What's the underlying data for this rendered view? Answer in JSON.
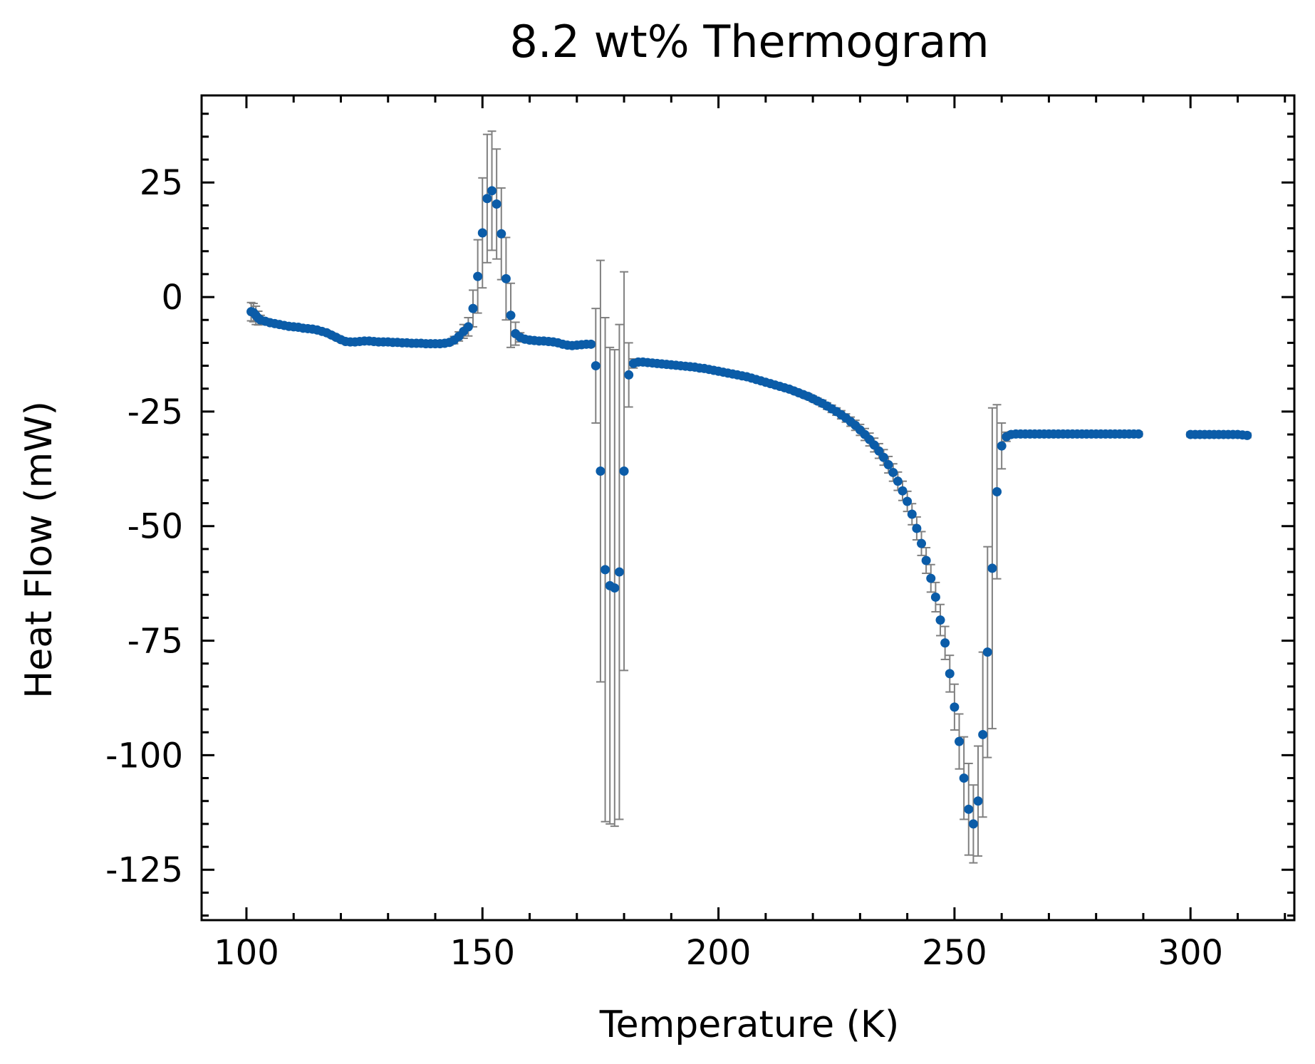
{
  "chart_data": {
    "type": "scatter",
    "title": "8.2 wt% Thermogram",
    "xlabel": "Temperature (K)",
    "ylabel": "Heat Flow (mW)",
    "xlim": [
      90.5,
      322
    ],
    "ylim": [
      -136,
      44
    ],
    "xticks": [
      100,
      150,
      200,
      250,
      300
    ],
    "xtick_labels": [
      "100",
      "150",
      "200",
      "250",
      "300"
    ],
    "yticks": [
      -125,
      -100,
      -75,
      -50,
      -25,
      0,
      25
    ],
    "ytick_labels": [
      "-125",
      "-100",
      "-75",
      "-50",
      "-25",
      "0",
      "25"
    ],
    "x_minor_step": 10,
    "y_minor_step": 5,
    "grid": false,
    "marker_color": "#0b5ca8",
    "errorbar_color": "#808080",
    "axis_color": "#000000",
    "series": [
      {
        "points": [
          [
            101,
            -3.2,
            2
          ],
          [
            101.5,
            -3.4,
            2
          ],
          [
            102,
            -4,
            2
          ],
          [
            102.5,
            -4.6,
            1.5
          ],
          [
            103,
            -5,
            1
          ],
          [
            104,
            -5.3,
            0.6
          ],
          [
            105,
            -5.6,
            0.5
          ],
          [
            106,
            -5.8,
            0.5
          ],
          [
            107,
            -6,
            0.5
          ],
          [
            108,
            -6.2,
            0.5
          ],
          [
            109,
            -6.4,
            0.5
          ],
          [
            110,
            -6.5,
            0.5
          ],
          [
            111,
            -6.6,
            0.5
          ],
          [
            112,
            -6.8,
            0.5
          ],
          [
            113,
            -6.9,
            0.5
          ],
          [
            114,
            -7,
            0.5
          ],
          [
            115,
            -7.2,
            0.5
          ],
          [
            116,
            -7.5,
            0.5
          ],
          [
            117,
            -7.8,
            0.5
          ],
          [
            118,
            -8.3,
            0.5
          ],
          [
            119,
            -8.8,
            0.5
          ],
          [
            120,
            -9.3,
            0.5
          ],
          [
            121,
            -9.7,
            0.5
          ],
          [
            122,
            -9.8,
            0.5
          ],
          [
            123,
            -9.8,
            0.5
          ],
          [
            124,
            -9.7,
            0.5
          ],
          [
            125,
            -9.6,
            0.5
          ],
          [
            126,
            -9.6,
            0.5
          ],
          [
            127,
            -9.7,
            0.5
          ],
          [
            128,
            -9.8,
            0.5
          ],
          [
            129,
            -9.8,
            0.5
          ],
          [
            130,
            -9.8,
            0.5
          ],
          [
            131,
            -9.9,
            0.5
          ],
          [
            132,
            -9.9,
            0.5
          ],
          [
            133,
            -10,
            0.5
          ],
          [
            134,
            -10,
            0.5
          ],
          [
            135,
            -10.1,
            0.5
          ],
          [
            136,
            -10.1,
            0.5
          ],
          [
            137,
            -10.1,
            0.5
          ],
          [
            138,
            -10.2,
            0.5
          ],
          [
            139,
            -10.2,
            0.5
          ],
          [
            140,
            -10.2,
            0.5
          ],
          [
            141,
            -10.2,
            0.5
          ],
          [
            142,
            -10.1,
            0.5
          ],
          [
            143,
            -9.9,
            0.6
          ],
          [
            144,
            -9.4,
            0.8
          ],
          [
            145,
            -8.6,
            1
          ],
          [
            146,
            -7.5,
            1.5
          ],
          [
            147,
            -6.5,
            2
          ],
          [
            148,
            -2.5,
            4
          ],
          [
            149,
            4.5,
            8
          ],
          [
            150,
            14,
            12
          ],
          [
            151,
            21.5,
            14
          ],
          [
            152,
            23.2,
            13
          ],
          [
            153,
            20.3,
            12
          ],
          [
            154,
            13.8,
            10
          ],
          [
            155,
            4,
            9
          ],
          [
            156,
            -4,
            7
          ],
          [
            157,
            -8,
            2.5
          ],
          [
            158,
            -8.8,
            1
          ],
          [
            159,
            -9.2,
            0.6
          ],
          [
            160,
            -9.4,
            0.5
          ],
          [
            161,
            -9.5,
            0.5
          ],
          [
            162,
            -9.6,
            0.5
          ],
          [
            163,
            -9.6,
            0.5
          ],
          [
            164,
            -9.7,
            0.5
          ],
          [
            165,
            -9.8,
            0.5
          ],
          [
            166,
            -10,
            0.5
          ],
          [
            167,
            -10.3,
            0.5
          ],
          [
            168,
            -10.5,
            0.5
          ],
          [
            169,
            -10.6,
            0.5
          ],
          [
            170,
            -10.5,
            0.5
          ],
          [
            171,
            -10.4,
            0.5
          ],
          [
            172,
            -10.3,
            0.5
          ],
          [
            173,
            -10.3,
            0.5
          ],
          [
            174,
            -15,
            12.5
          ],
          [
            175,
            -38,
            46
          ],
          [
            176,
            -59.5,
            55
          ],
          [
            177,
            -63,
            52
          ],
          [
            178,
            -63.5,
            52
          ],
          [
            179,
            -60,
            54
          ],
          [
            180,
            -38,
            43.5
          ],
          [
            181,
            -17,
            7
          ],
          [
            182,
            -14.5,
            1
          ],
          [
            183,
            -14.2,
            0.6
          ],
          [
            184,
            -14.2,
            0.5
          ],
          [
            185,
            -14.3,
            0.5
          ],
          [
            186,
            -14.4,
            0.5
          ],
          [
            187,
            -14.5,
            0.5
          ],
          [
            188,
            -14.6,
            0.5
          ],
          [
            189,
            -14.7,
            0.5
          ],
          [
            190,
            -14.8,
            0.5
          ],
          [
            191,
            -14.9,
            0.5
          ],
          [
            192,
            -15,
            0.5
          ],
          [
            193,
            -15.1,
            0.5
          ],
          [
            194,
            -15.2,
            0.5
          ],
          [
            195,
            -15.3,
            0.5
          ],
          [
            196,
            -15.5,
            0.5
          ],
          [
            197,
            -15.6,
            0.5
          ],
          [
            198,
            -15.8,
            0.5
          ],
          [
            199,
            -16,
            0.5
          ],
          [
            200,
            -16.2,
            0.5
          ],
          [
            201,
            -16.4,
            0.5
          ],
          [
            202,
            -16.6,
            0.5
          ],
          [
            203,
            -16.8,
            0.5
          ],
          [
            204,
            -17,
            0.5
          ],
          [
            205,
            -17.2,
            0.5
          ],
          [
            206,
            -17.4,
            0.5
          ],
          [
            207,
            -17.7,
            0.5
          ],
          [
            208,
            -18,
            0.5
          ],
          [
            209,
            -18.3,
            0.5
          ],
          [
            210,
            -18.6,
            0.5
          ],
          [
            211,
            -18.9,
            0.5
          ],
          [
            212,
            -19.2,
            0.5
          ],
          [
            213,
            -19.5,
            0.5
          ],
          [
            214,
            -19.8,
            0.5
          ],
          [
            215,
            -20.1,
            0.5
          ],
          [
            216,
            -20.5,
            0.5
          ],
          [
            217,
            -20.9,
            0.5
          ],
          [
            218,
            -21.3,
            0.5
          ],
          [
            219,
            -21.7,
            0.6
          ],
          [
            220,
            -22.2,
            0.6
          ],
          [
            221,
            -22.7,
            0.6
          ],
          [
            222,
            -23.2,
            0.7
          ],
          [
            223,
            -23.8,
            0.7
          ],
          [
            224,
            -24.4,
            0.8
          ],
          [
            225,
            -25,
            0.8
          ],
          [
            226,
            -25.7,
            0.9
          ],
          [
            227,
            -26.4,
            0.9
          ],
          [
            228,
            -27.2,
            1
          ],
          [
            229,
            -28,
            1.1
          ],
          [
            230,
            -29,
            1.2
          ],
          [
            231,
            -30,
            1.3
          ],
          [
            232,
            -31.1,
            1.4
          ],
          [
            233,
            -32.3,
            1.5
          ],
          [
            234,
            -33.6,
            1.6
          ],
          [
            235,
            -35,
            1.7
          ],
          [
            236,
            -36.6,
            1.8
          ],
          [
            237,
            -38.3,
            1.9
          ],
          [
            238,
            -40.2,
            2
          ],
          [
            239,
            -42.3,
            2.1
          ],
          [
            240,
            -44.6,
            2.2
          ],
          [
            241,
            -47.4,
            2.3
          ],
          [
            242,
            -50.5,
            2.5
          ],
          [
            243,
            -53.8,
            2.6
          ],
          [
            244,
            -57.5,
            2.8
          ],
          [
            245,
            -61.4,
            3
          ],
          [
            246,
            -65.5,
            3.2
          ],
          [
            247,
            -70.5,
            3.4
          ],
          [
            248,
            -75.5,
            3.6
          ],
          [
            249,
            -82.2,
            4
          ],
          [
            250,
            -89.5,
            5
          ],
          [
            251,
            -97,
            6
          ],
          [
            252,
            -105,
            9
          ],
          [
            253,
            -111.8,
            10
          ],
          [
            254,
            -115,
            8.5
          ],
          [
            255,
            -110,
            12
          ],
          [
            256,
            -95.5,
            18
          ],
          [
            257,
            -77.5,
            23
          ],
          [
            258,
            -59.2,
            35
          ],
          [
            259,
            -42.5,
            19
          ],
          [
            260,
            -32.5,
            5
          ],
          [
            261,
            -30.5,
            1
          ],
          [
            262,
            -30,
            0.6
          ],
          [
            263,
            -29.9,
            0.5
          ],
          [
            264,
            -29.9,
            0.5
          ],
          [
            265,
            -29.9,
            0.5
          ],
          [
            266,
            -29.9,
            0.5
          ],
          [
            267,
            -29.9,
            0.5
          ],
          [
            268,
            -29.9,
            0.5
          ],
          [
            269,
            -29.9,
            0.5
          ],
          [
            270,
            -29.9,
            0.5
          ],
          [
            271,
            -29.9,
            0.5
          ],
          [
            272,
            -29.9,
            0.5
          ],
          [
            273,
            -29.9,
            0.5
          ],
          [
            274,
            -29.9,
            0.5
          ],
          [
            275,
            -29.9,
            0.5
          ],
          [
            276,
            -29.9,
            0.5
          ],
          [
            277,
            -29.9,
            0.5
          ],
          [
            278,
            -29.9,
            0.5
          ],
          [
            279,
            -29.9,
            0.5
          ],
          [
            280,
            -29.9,
            0.5
          ],
          [
            281,
            -29.9,
            0.5
          ],
          [
            282,
            -29.9,
            0.5
          ],
          [
            283,
            -29.9,
            0.5
          ],
          [
            284,
            -29.9,
            0.5
          ],
          [
            285,
            -29.9,
            0.5
          ],
          [
            286,
            -29.9,
            0.5
          ],
          [
            287,
            -29.9,
            0.5
          ],
          [
            288,
            -29.9,
            0.5
          ],
          [
            289,
            -29.9,
            0.5
          ],
          [
            300,
            -30,
            0.5
          ],
          [
            301,
            -30,
            0.5
          ],
          [
            302,
            -30,
            0.5
          ],
          [
            303,
            -30,
            0.5
          ],
          [
            304,
            -30,
            0.5
          ],
          [
            305,
            -30,
            0.5
          ],
          [
            306,
            -30,
            0.5
          ],
          [
            307,
            -30,
            0.5
          ],
          [
            308,
            -30,
            0.5
          ],
          [
            309,
            -30,
            0.5
          ],
          [
            310,
            -30,
            0.5
          ],
          [
            311,
            -30.1,
            0.5
          ],
          [
            312,
            -30.2,
            0.5
          ]
        ]
      }
    ]
  }
}
